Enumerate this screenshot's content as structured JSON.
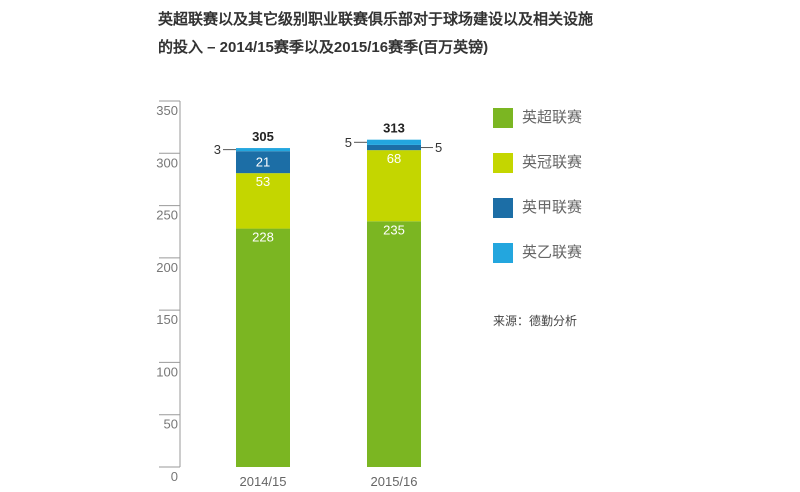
{
  "source": "来源：德勤分析",
  "chart_data": {
    "type": "bar",
    "stacked": true,
    "title": "英超联赛以及其它级别职业联赛俱乐部对于球场建设以及相关设施\n的投入 – 2014/15赛季以及2015/16赛季(百万英镑)",
    "categories": [
      "2014/15",
      "2015/16"
    ],
    "series": [
      {
        "name": "英超联赛",
        "values": [
          228,
          235
        ],
        "color": "#7bb622"
      },
      {
        "name": "英冠联赛",
        "values": [
          53,
          68
        ],
        "color": "#c4d600"
      },
      {
        "name": "英甲联赛",
        "values": [
          21,
          5
        ],
        "color": "#1c6ea6"
      },
      {
        "name": "英乙联赛",
        "values": [
          3,
          5
        ],
        "color": "#23a6de"
      }
    ],
    "totals": [
      305,
      313
    ],
    "ylim": [
      0,
      350
    ],
    "yticks": [
      0,
      50,
      100,
      150,
      200,
      250,
      300,
      350
    ],
    "grid": false,
    "legend": "right"
  }
}
